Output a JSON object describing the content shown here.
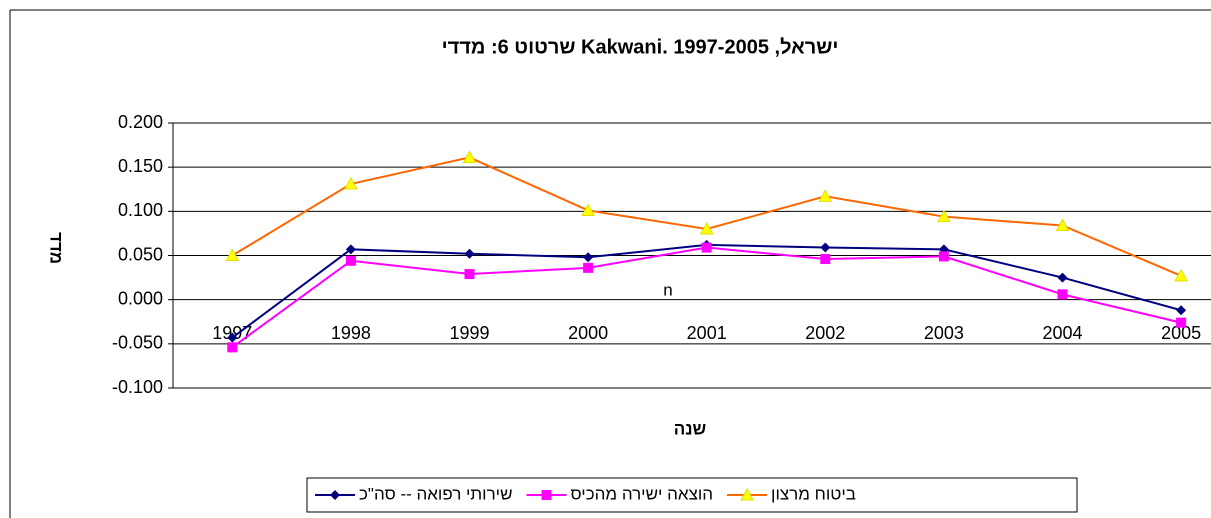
{
  "chart_data": {
    "type": "line",
    "title": "שרטוט 6: מדדי Kakwani. ישראל, 1997-2005",
    "y_label": "מדד",
    "x_label": "שנה",
    "annotation": "n",
    "categories": [
      "1997",
      "1998",
      "1999",
      "2000",
      "2001",
      "2002",
      "2003",
      "2004",
      "2005"
    ],
    "series": [
      {
        "name": "שירותי רפואה -- סה\"כ",
        "color": "#000080",
        "marker": "diamond",
        "values": [
          -0.043,
          0.057,
          0.052,
          0.048,
          0.062,
          0.059,
          0.057,
          0.025,
          -0.012
        ]
      },
      {
        "name": "הוצאה ישירה מהכיס",
        "color": "#ff00ff",
        "marker": "square",
        "values": [
          -0.054,
          0.044,
          0.029,
          0.036,
          0.059,
          0.046,
          0.049,
          0.006,
          -0.026
        ]
      },
      {
        "name": "ביטוח מרצון",
        "color": "#ff6600",
        "marker": "triangle",
        "values": [
          0.05,
          0.131,
          0.161,
          0.101,
          0.08,
          0.117,
          0.094,
          0.084,
          0.027
        ]
      }
    ],
    "ylim": [
      -0.1,
      0.2
    ],
    "yticks": [
      {
        "value": -0.1,
        "label": "-0.100"
      },
      {
        "value": -0.05,
        "label": "-0.050"
      },
      {
        "value": 0,
        "label": "0.000"
      },
      {
        "value": 0.05,
        "label": "0.050"
      },
      {
        "value": 0.1,
        "label": "0.100"
      },
      {
        "value": 0.15,
        "label": "0.150"
      },
      {
        "value": 0.2,
        "label": "0.200"
      }
    ],
    "grid": true,
    "legend": "bottom"
  }
}
